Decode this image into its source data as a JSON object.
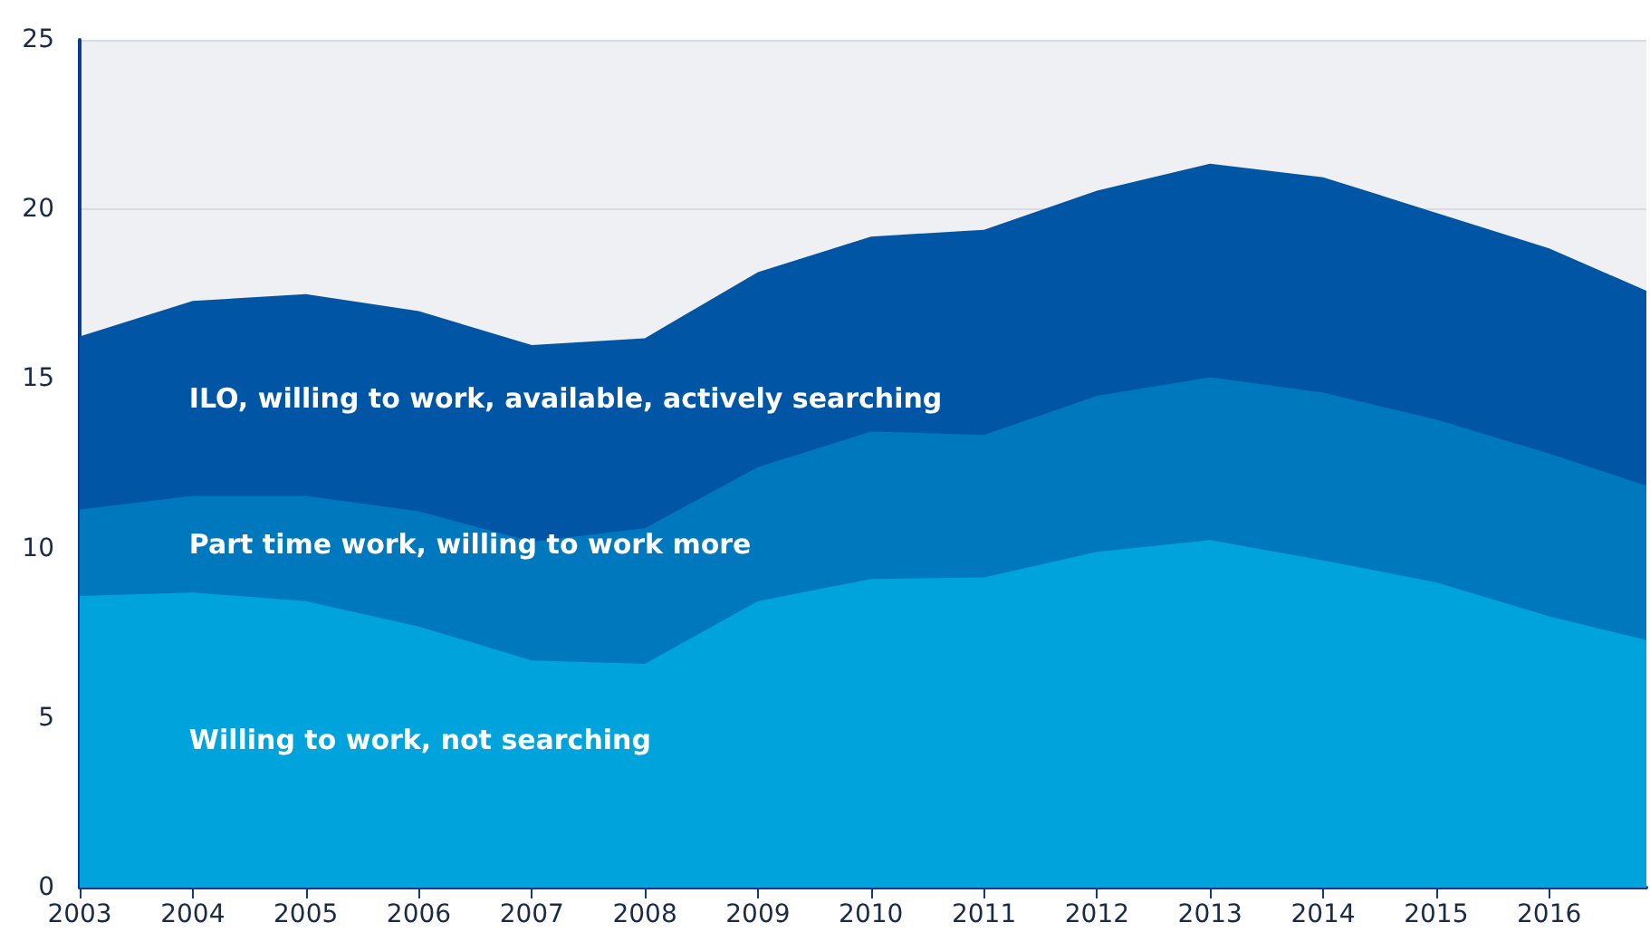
{
  "chart_data": {
    "type": "area",
    "stacked": true,
    "x": [
      2003,
      2004,
      2005,
      2006,
      2007,
      2008,
      2009,
      2010,
      2011,
      2012,
      2013,
      2014,
      2015,
      2016,
      2016.86
    ],
    "xlim": [
      2003,
      2016.86
    ],
    "xticks": [
      2003,
      2004,
      2005,
      2006,
      2007,
      2008,
      2009,
      2010,
      2011,
      2012,
      2013,
      2014,
      2015,
      2016
    ],
    "ylim": [
      0,
      25
    ],
    "yticks": [
      0,
      5,
      10,
      15,
      20,
      25
    ],
    "grid": "y",
    "legend": false,
    "series": [
      {
        "name": "Willing to work, not searching",
        "color": "#00a3dc",
        "values": [
          8.6,
          8.7,
          8.45,
          7.7,
          6.7,
          6.6,
          8.45,
          9.1,
          9.15,
          9.9,
          10.25,
          9.65,
          9.0,
          8.0,
          7.3
        ]
      },
      {
        "name": "Part time work, willing to work more",
        "color": "#0078be",
        "values": [
          2.55,
          2.85,
          3.1,
          3.4,
          3.5,
          4.0,
          3.95,
          4.35,
          4.2,
          4.6,
          4.8,
          4.95,
          4.8,
          4.8,
          4.55
        ]
      },
      {
        "name": "ILO, willing to work, available, actively searching",
        "color": "#0055a5",
        "values": [
          5.1,
          5.75,
          5.95,
          5.9,
          5.8,
          5.6,
          5.75,
          5.75,
          6.05,
          6.05,
          6.3,
          6.35,
          6.1,
          6.05,
          5.75
        ]
      }
    ]
  }
}
